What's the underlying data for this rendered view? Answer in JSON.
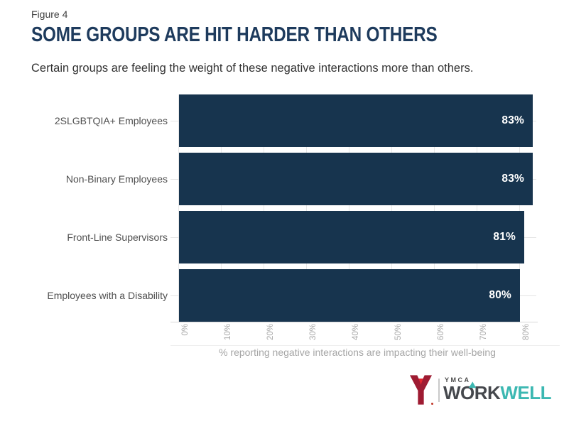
{
  "figure_label": "Figure 4",
  "title": "SOME GROUPS ARE HIT HARDER THAN OTHERS",
  "subtitle": "Certain groups are feeling the weight of these negative interactions more than others.",
  "chart_data": {
    "type": "bar",
    "orientation": "horizontal",
    "title": "SOME GROUPS ARE HIT HARDER THAN OTHERS",
    "categories": [
      "2SLGBTQIA+ Employees",
      "Non-Binary Employees",
      "Front-Line Supervisors",
      "Employees with a Disability"
    ],
    "values": [
      83,
      83,
      81,
      80
    ],
    "value_labels": [
      "83%",
      "83%",
      "81%",
      "80%"
    ],
    "xlabel": "% reporting negative interactions are impacting their well-being",
    "x_ticks": [
      {
        "value": 0,
        "label": "0%"
      },
      {
        "value": 10,
        "label": "10%"
      },
      {
        "value": 20,
        "label": "20%"
      },
      {
        "value": 30,
        "label": "30%"
      },
      {
        "value": 40,
        "label": "40%"
      },
      {
        "value": 50,
        "label": "50%"
      },
      {
        "value": 60,
        "label": "60%"
      },
      {
        "value": 70,
        "label": "70%"
      },
      {
        "value": 80,
        "label": "80%"
      }
    ],
    "xlim": [
      0,
      84
    ],
    "grid": true,
    "legend": "none",
    "bar_color": "#17344e",
    "value_label_color": "#ffffff"
  },
  "colors": {
    "title": "#1e3b5d",
    "figure_label": "#3d3d3d",
    "subtitle": "#333333",
    "category_label": "#4f4f4f",
    "tick_label": "#a9a9a9",
    "axis_label": "#a5a5a5",
    "gridline": "#e8e8e8"
  },
  "logo": {
    "ymca_label": "YMCA",
    "wordmark": {
      "w": "W",
      "o": "O",
      "rk": "RK",
      "well": "WELL"
    },
    "colors": {
      "y_dark": "#9e1b32",
      "y_bright": "#e4252e",
      "work": "#45484d",
      "well": "#3cb8b2"
    }
  }
}
